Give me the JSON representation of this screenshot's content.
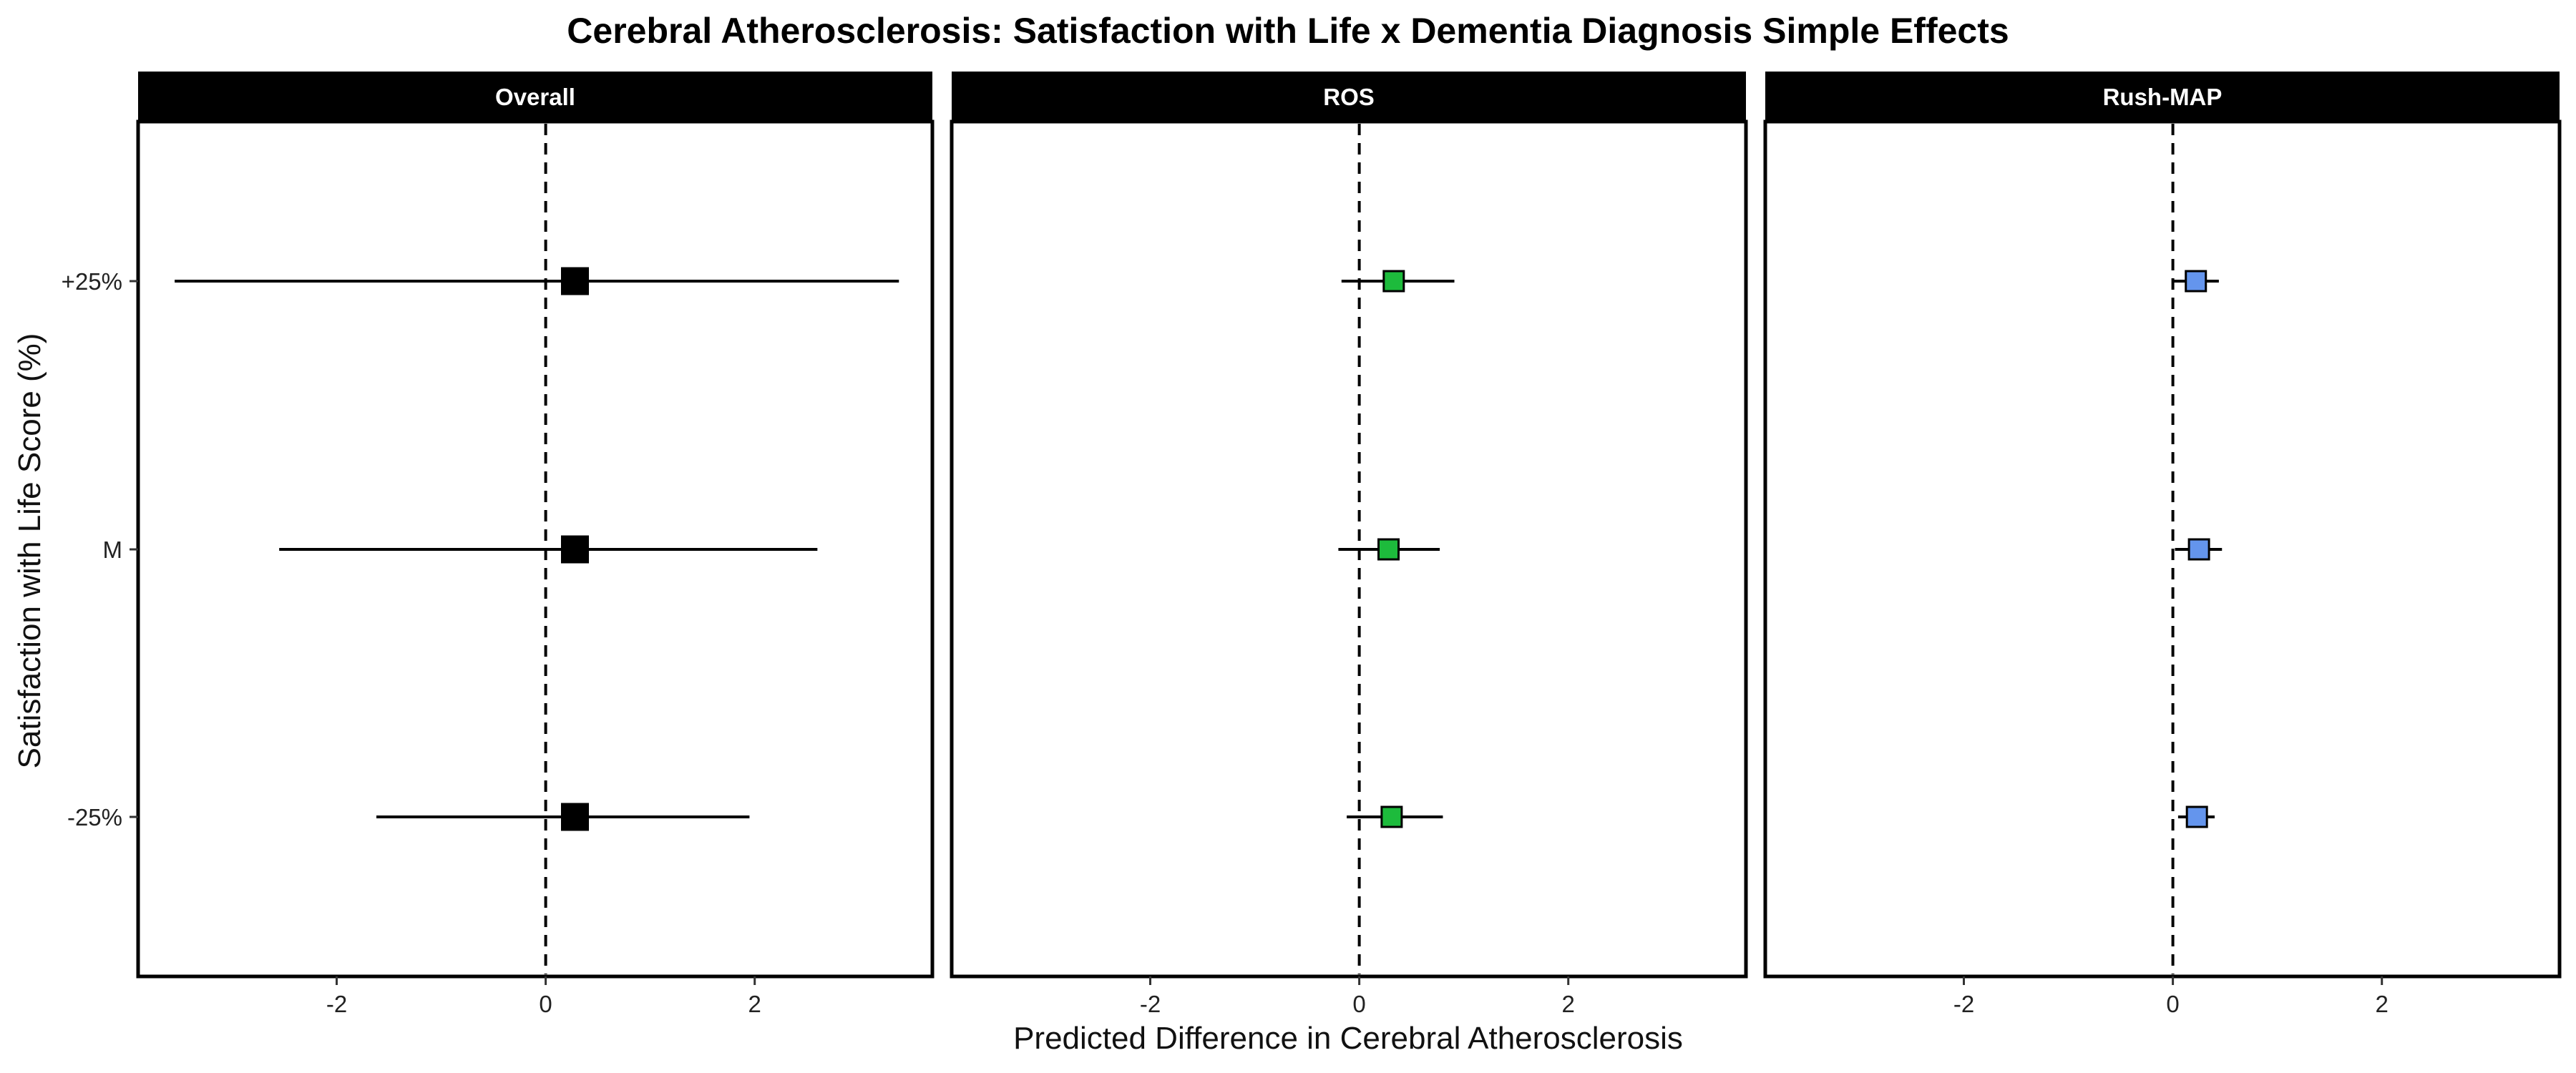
{
  "chart_data": {
    "type": "forest",
    "title": "Cerebral Atherosclerosis: Satisfaction with Life x Dementia Diagnosis Simple Effects",
    "xlabel": "Predicted Difference in Cerebral Atherosclerosis",
    "ylabel": "Satisfaction with Life Score (%)",
    "categories": [
      "-25%",
      "M",
      "+25%"
    ],
    "xlim": [
      -3.9,
      3.7
    ],
    "xticks": [
      -2,
      0,
      2
    ],
    "xtick_labels": [
      "-2",
      "0",
      "2"
    ],
    "reference_line": 0,
    "grid": false,
    "panels": [
      {
        "name": "Overall",
        "color": "#000000",
        "points": [
          {
            "category": "+25%",
            "estimate": 0.28,
            "low": -3.55,
            "high": 3.38
          },
          {
            "category": "M",
            "estimate": 0.28,
            "low": -2.55,
            "high": 2.6
          },
          {
            "category": "-25%",
            "estimate": 0.28,
            "low": -1.62,
            "high": 1.95
          }
        ]
      },
      {
        "name": "ROS",
        "color": "#1dbb3c",
        "points": [
          {
            "category": "+25%",
            "estimate": 0.33,
            "low": -0.17,
            "high": 0.91
          },
          {
            "category": "M",
            "estimate": 0.28,
            "low": -0.2,
            "high": 0.77
          },
          {
            "category": "-25%",
            "estimate": 0.31,
            "low": -0.12,
            "high": 0.8
          }
        ]
      },
      {
        "name": "Rush-MAP",
        "color": "#6495ed",
        "points": [
          {
            "category": "+25%",
            "estimate": 0.22,
            "low": 0.0,
            "high": 0.44
          },
          {
            "category": "M",
            "estimate": 0.25,
            "low": 0.02,
            "high": 0.47
          },
          {
            "category": "-25%",
            "estimate": 0.23,
            "low": 0.05,
            "high": 0.4
          }
        ]
      }
    ]
  }
}
